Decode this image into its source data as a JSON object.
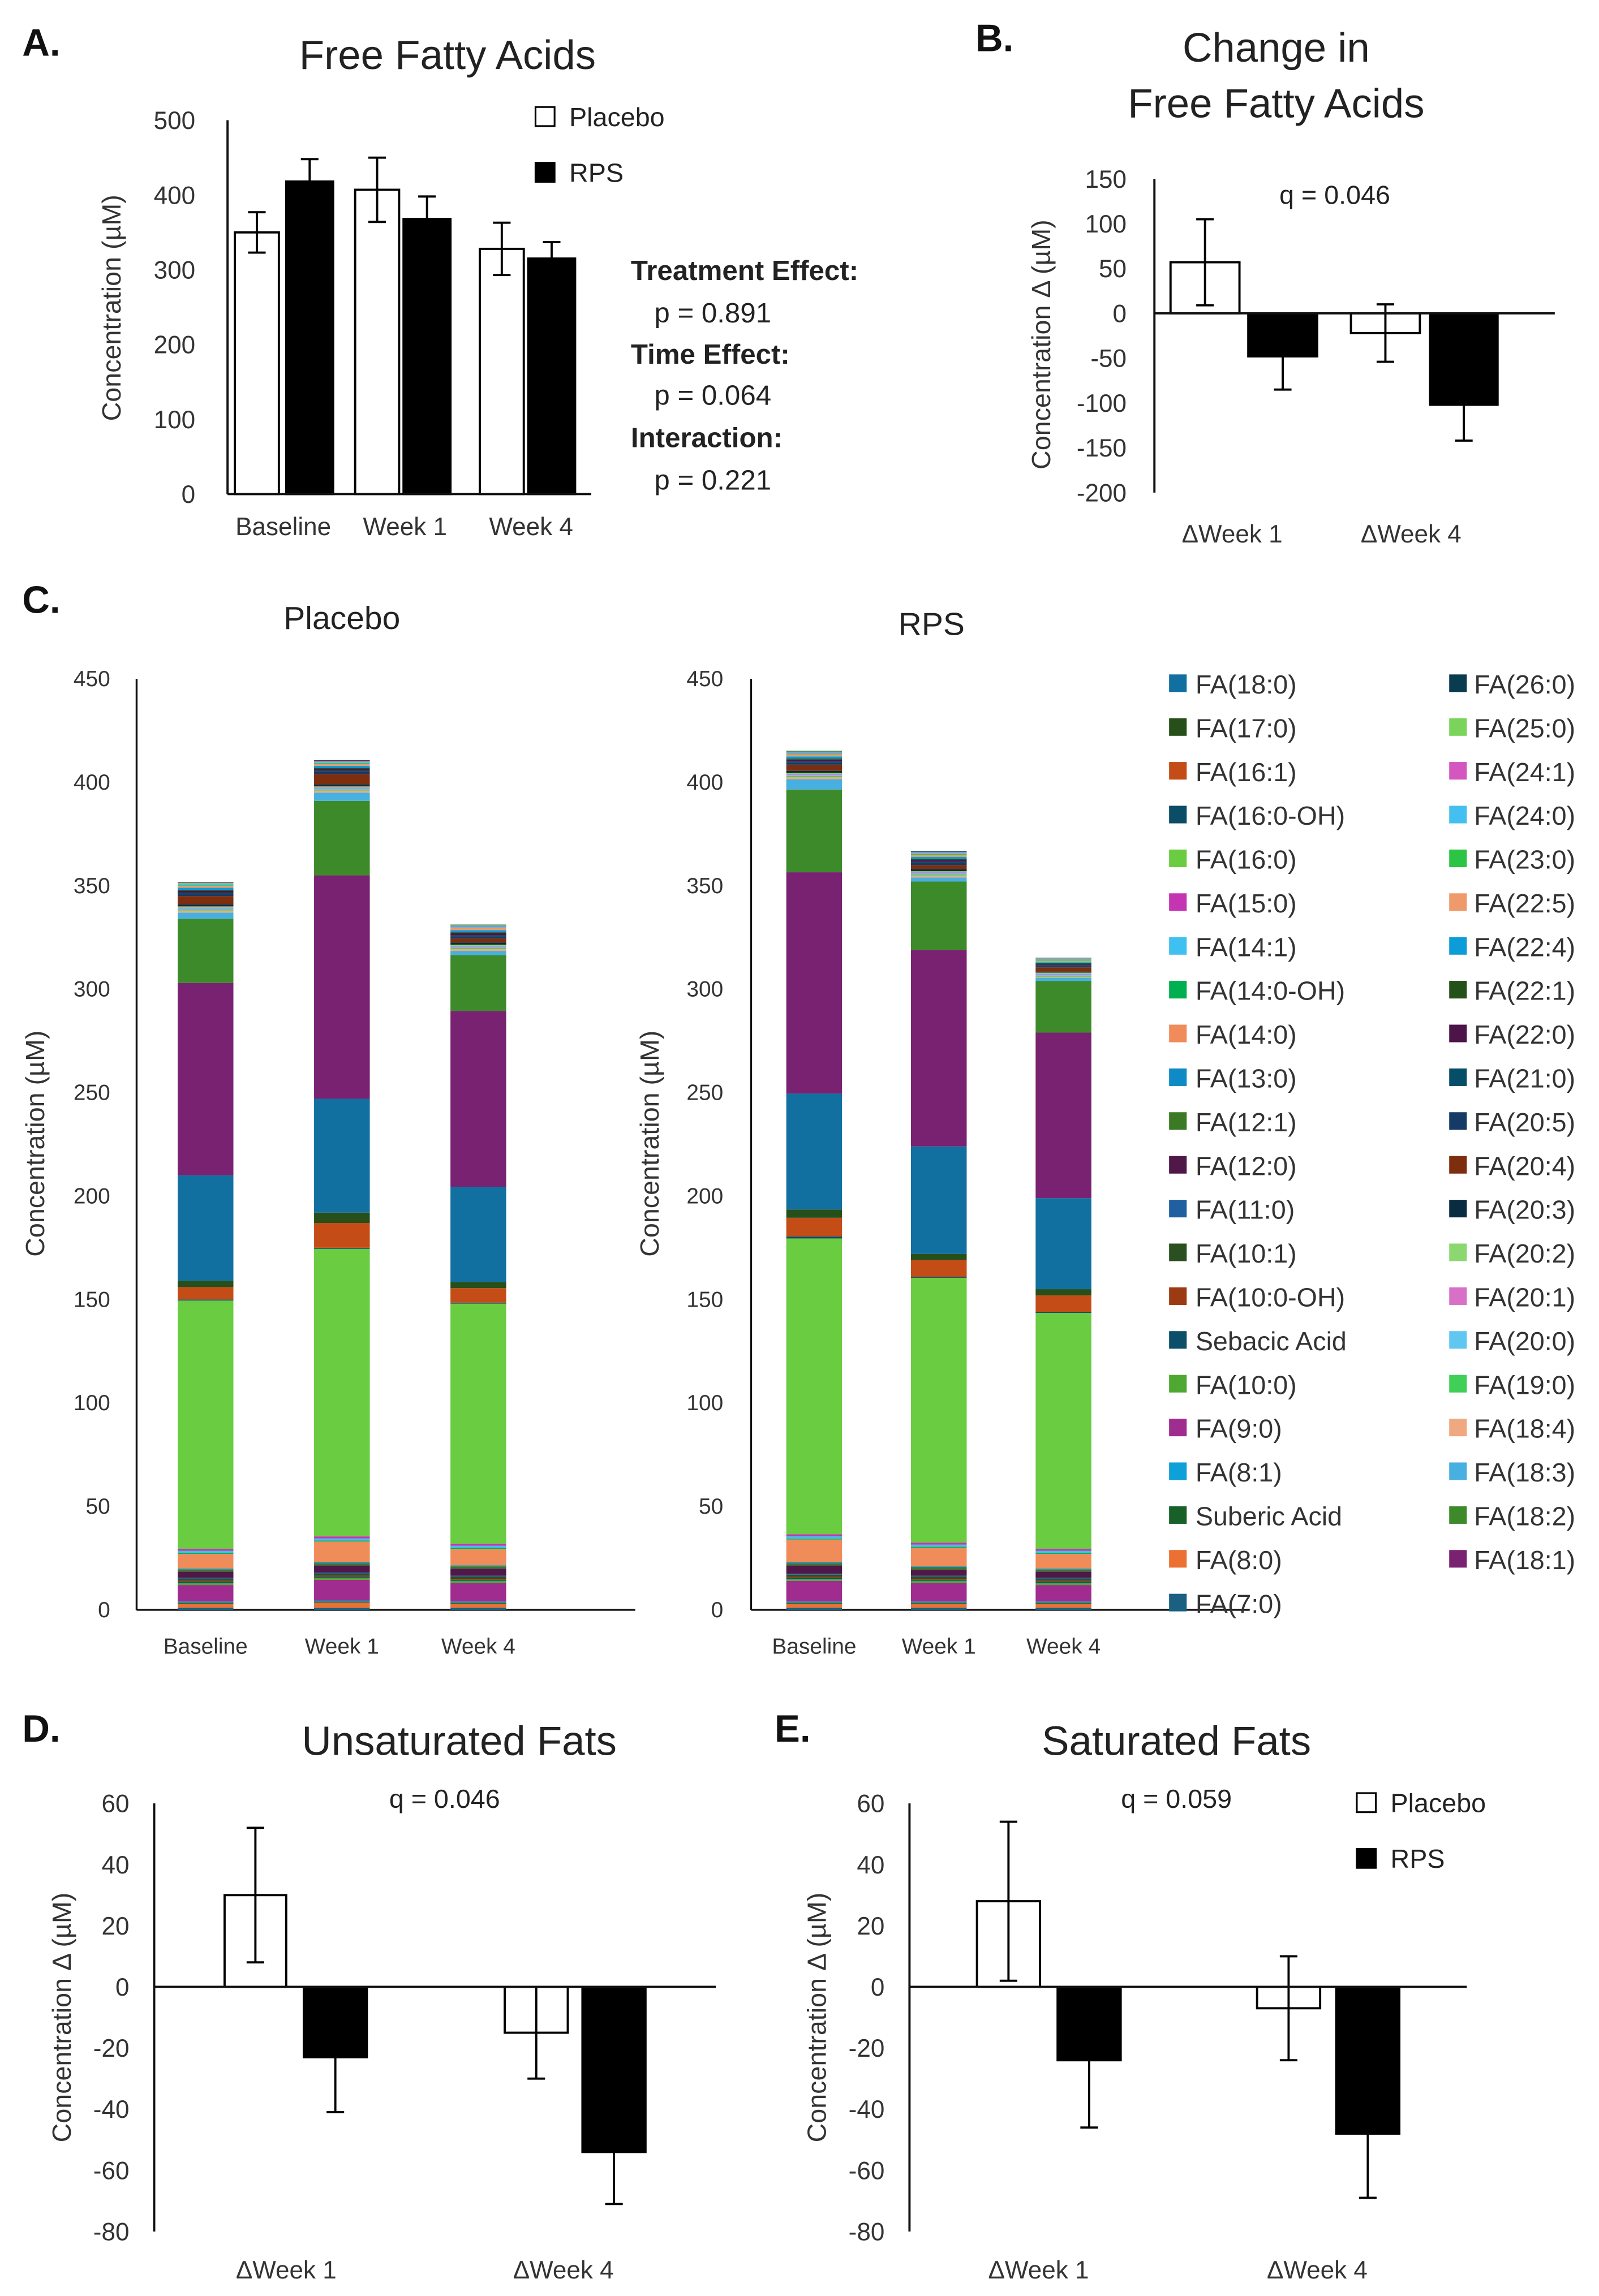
{
  "panel_labels": {
    "a": "A.",
    "b": "B.",
    "c": "C.",
    "d": "D.",
    "e": "E."
  },
  "stats_text": {
    "treatment_label": "Treatment Effect:",
    "treatment_p": "p = 0.891",
    "time_label": "Time Effect:",
    "time_p": "p = 0.064",
    "interaction_label": "Interaction:",
    "interaction_p": "p = 0.221"
  },
  "chart_data": [
    {
      "id": "A",
      "type": "bar",
      "title": "Free Fatty Acids",
      "xlabel": "",
      "ylabel": "Concentration  (µM)",
      "ylim": [
        0,
        500
      ],
      "yticks": [
        0,
        100,
        200,
        300,
        400,
        500
      ],
      "categories": [
        "Baseline",
        "Week 1",
        "Week 4"
      ],
      "series": [
        {
          "name": "Placebo",
          "color": "#ffffff",
          "values": [
            350,
            407,
            328
          ],
          "errors": [
            27,
            43,
            35
          ]
        },
        {
          "name": "RPS",
          "color": "#000000",
          "values": [
            418,
            368,
            315
          ],
          "errors": [
            30,
            30,
            22
          ]
        }
      ],
      "legend": "top-right"
    },
    {
      "id": "B",
      "type": "bar",
      "title": [
        "Change in",
        "Free Fatty Acids"
      ],
      "xlabel": "",
      "ylabel": "Concentration  Δ (µM)",
      "ylim": [
        -200,
        150
      ],
      "yticks": [
        -200,
        -150,
        -100,
        -50,
        0,
        50,
        100,
        150
      ],
      "categories": [
        "ΔWeek 1",
        "ΔWeek 4"
      ],
      "annotation": "q = 0.046",
      "series": [
        {
          "name": "Placebo",
          "color": "#ffffff",
          "values": [
            57,
            -22
          ],
          "errors": [
            48,
            32
          ]
        },
        {
          "name": "RPS",
          "color": "#000000",
          "values": [
            -48,
            -102
          ],
          "errors": [
            37,
            40
          ]
        }
      ]
    },
    {
      "id": "C",
      "type": "bar",
      "stacked": true,
      "ylabel": "Concentration (µM)",
      "ylim": [
        0,
        450
      ],
      "yticks": [
        0,
        50,
        100,
        150,
        200,
        250,
        300,
        350,
        400,
        450
      ],
      "categories": [
        "Baseline",
        "Week 1",
        "Week 4"
      ],
      "components": [
        {
          "name": "FA(7:0)",
          "color": "#1a6080"
        },
        {
          "name": "FA(8:0)",
          "color": "#ec7032"
        },
        {
          "name": "Suberic Acid",
          "color": "#176028"
        },
        {
          "name": "FA(8:1)",
          "color": "#0ea0d8"
        },
        {
          "name": "FA(9:0)",
          "color": "#a02c90"
        },
        {
          "name": "FA(10:0)",
          "color": "#4ea832"
        },
        {
          "name": "Sebacic Acid",
          "color": "#0b5068"
        },
        {
          "name": "FA(10:0-OH)",
          "color": "#9c3a12"
        },
        {
          "name": "FA(10:1)",
          "color": "#2a5020"
        },
        {
          "name": "FA(11:0)",
          "color": "#2060a0"
        },
        {
          "name": "FA(12:0)",
          "color": "#4f1848"
        },
        {
          "name": "FA(12:1)",
          "color": "#3a7a24"
        },
        {
          "name": "FA(13:0)",
          "color": "#0e8ac4"
        },
        {
          "name": "FA(14:0)",
          "color": "#ef8c5a"
        },
        {
          "name": "FA(14:0-OH)",
          "color": "#00b050"
        },
        {
          "name": "FA(14:1)",
          "color": "#3ec0f0"
        },
        {
          "name": "FA(15:0)",
          "color": "#c535b3"
        },
        {
          "name": "FA(16:0)",
          "color": "#6acc40"
        },
        {
          "name": "FA(16:0-OH)",
          "color": "#0b4d66"
        },
        {
          "name": "FA(16:1)",
          "color": "#c44d17"
        },
        {
          "name": "FA(17:0)",
          "color": "#264f1a"
        },
        {
          "name": "FA(18:0)",
          "color": "#1170a0"
        },
        {
          "name": "FA(18:1)",
          "color": "#7a2272"
        },
        {
          "name": "FA(18:2)",
          "color": "#3d8a2a"
        },
        {
          "name": "FA(18:3)",
          "color": "#48b0e0"
        },
        {
          "name": "FA(18:4)",
          "color": "#f0a880"
        },
        {
          "name": "FA(19:0)",
          "color": "#40d058"
        },
        {
          "name": "FA(20:0)",
          "color": "#60c8f0"
        },
        {
          "name": "FA(20:1)",
          "color": "#d870c8"
        },
        {
          "name": "FA(20:2)",
          "color": "#8cd870"
        },
        {
          "name": "FA(20:3)",
          "color": "#0a2c40"
        },
        {
          "name": "FA(20:4)",
          "color": "#7c2e0e"
        },
        {
          "name": "FA(20:5)",
          "color": "#163a66"
        },
        {
          "name": "FA(21:0)",
          "color": "#064e68"
        },
        {
          "name": "FA(22:0)",
          "color": "#4c1448"
        },
        {
          "name": "FA(22:1)",
          "color": "#24501a"
        },
        {
          "name": "FA(22:4)",
          "color": "#0c9cd8"
        },
        {
          "name": "FA(22:5)",
          "color": "#ef9a6a"
        },
        {
          "name": "FA(23:0)",
          "color": "#2cc444"
        },
        {
          "name": "FA(24:0)",
          "color": "#44c0f0"
        },
        {
          "name": "FA(24:1)",
          "color": "#d457c0"
        },
        {
          "name": "FA(25:0)",
          "color": "#7ad35a"
        },
        {
          "name": "FA(26:0)",
          "color": "#0a3c50"
        }
      ],
      "groups": [
        {
          "title": "Placebo",
          "bars": [
            [
              1,
              2,
              0.5,
              0.5,
              8,
              1,
              0.5,
              0.5,
              1,
              0.5,
              3,
              1,
              0.5,
              7,
              0.5,
              1,
              1,
              120,
              0.5,
              6,
              3,
              51,
              93,
              31,
              3,
              1,
              0.5,
              0.5,
              0.5,
              0.5,
              1,
              4,
              1,
              0.5,
              1,
              0.5,
              1,
              1,
              0.3,
              0.5,
              0.3,
              0.3,
              0.3
            ],
            [
              1,
              2.5,
              0.5,
              0.5,
              10,
              1,
              0.5,
              0.5,
              1,
              0.5,
              3.5,
              1,
              0.5,
              10,
              0.5,
              1,
              1,
              139,
              0.5,
              12,
              5,
              55,
              108,
              36,
              4,
              1,
              0.5,
              0.5,
              0.5,
              0.5,
              1,
              5,
              1,
              0.5,
              1,
              0.5,
              1,
              1,
              0.3,
              0.5,
              0.3,
              0.3,
              0.3
            ],
            [
              1,
              2,
              0.5,
              0.5,
              9,
              1,
              0.5,
              0.5,
              1,
              0.5,
              3.5,
              1,
              0.5,
              8,
              0.5,
              1,
              1,
              116,
              0.5,
              7,
              3,
              46,
              85,
              27,
              2,
              1,
              0.5,
              0.5,
              0.5,
              0.5,
              1,
              2,
              1,
              0.5,
              1,
              0.5,
              1,
              1,
              0.3,
              0.5,
              0.3,
              0.3,
              0.3
            ]
          ]
        },
        {
          "title": "RPS",
          "bars": [
            [
              1,
              2,
              0.5,
              0.5,
              10,
              1,
              0.5,
              0.5,
              1,
              0.5,
              4,
              1,
              0.5,
              11,
              0.5,
              1,
              1,
              143,
              1,
              9,
              4,
              56,
              107,
              40,
              5,
              1,
              0.5,
              0.5,
              0.5,
              0.5,
              1,
              3,
              1,
              0.5,
              1,
              0.5,
              1,
              1,
              0.3,
              0.5,
              0.3,
              0.3,
              0.3
            ],
            [
              1,
              2,
              0.5,
              0.5,
              9,
              1,
              0.5,
              0.5,
              1,
              0.5,
              3,
              1,
              0.5,
              9,
              0.5,
              1,
              1,
              128,
              0.5,
              8,
              3,
              52,
              95,
              33,
              2,
              1,
              0.5,
              0.5,
              0.5,
              0.5,
              1,
              2,
              1,
              0.5,
              1,
              0.5,
              1,
              1,
              0.3,
              0.5,
              0.3,
              0.3,
              0.3
            ],
            [
              1,
              2,
              0.5,
              0.5,
              8,
              1,
              0.5,
              0.5,
              1,
              0.5,
              3,
              1,
              0.5,
              7,
              0.5,
              1,
              1,
              114,
              0.5,
              8,
              3,
              44,
              80,
              25,
              1.5,
              0.5,
              0.5,
              0.5,
              0.5,
              0.5,
              0.5,
              2,
              0.5,
              0.5,
              0.5,
              0.5,
              0.5,
              0.5,
              0.3,
              0.5,
              0.3,
              0.3,
              0.3
            ]
          ]
        }
      ],
      "legend": "right"
    },
    {
      "id": "D",
      "type": "bar",
      "title": "Unsaturated Fats",
      "ylabel": "Concentration  Δ (µM)",
      "ylim": [
        -80,
        60
      ],
      "yticks": [
        -80,
        -60,
        -40,
        -20,
        0,
        20,
        40,
        60
      ],
      "categories": [
        "ΔWeek 1",
        "ΔWeek 4"
      ],
      "annotation": "q = 0.046",
      "series": [
        {
          "name": "Placebo",
          "color": "#ffffff",
          "values": [
            30,
            -15
          ],
          "errors": [
            22,
            15
          ]
        },
        {
          "name": "RPS",
          "color": "#000000",
          "values": [
            -23,
            -54
          ],
          "errors": [
            18,
            17
          ]
        }
      ]
    },
    {
      "id": "E",
      "type": "bar",
      "title": "Saturated Fats",
      "ylabel": "Concentration  Δ (µM)",
      "ylim": [
        -80,
        60
      ],
      "yticks": [
        -80,
        -60,
        -40,
        -20,
        0,
        20,
        40,
        60
      ],
      "categories": [
        "ΔWeek 1",
        "ΔWeek 4"
      ],
      "annotation": "q = 0.059",
      "series": [
        {
          "name": "Placebo",
          "color": "#ffffff",
          "values": [
            28,
            -7
          ],
          "errors": [
            26,
            17
          ]
        },
        {
          "name": "RPS",
          "color": "#000000",
          "values": [
            -24,
            -48
          ],
          "errors": [
            22,
            21
          ]
        }
      ],
      "legend": "top-right"
    }
  ]
}
